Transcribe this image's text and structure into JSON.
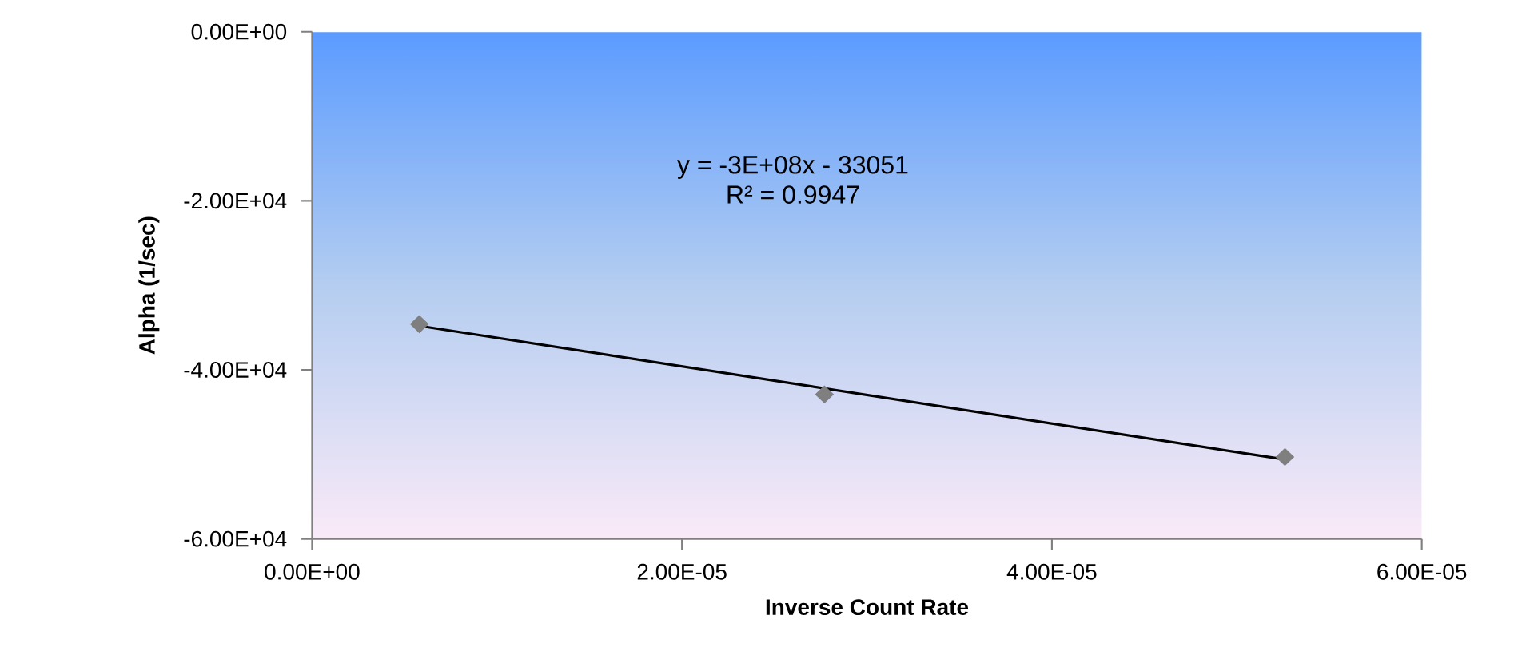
{
  "chart_data": {
    "type": "scatter",
    "xlabel": "Inverse Count Rate",
    "ylabel": "Alpha (1/sec)",
    "series": [
      {
        "color": "#7f7f7f",
        "marker": "diamond",
        "x": [
          5.8e-06,
          2.77e-05,
          5.26e-05
        ],
        "values": [
          -34600,
          -42900,
          -50300
        ]
      },
      {
        "type": "line",
        "color": "#000000",
        "x": [
          5.8e-06,
          5.26e-05
        ],
        "values": [
          -34800,
          -50600
        ]
      }
    ],
    "annotations": [
      {
        "text": "y = -3E+08x - 33051"
      },
      {
        "text": "R² = 0.9947"
      }
    ],
    "xlim": [
      0,
      6e-05
    ],
    "ylim": [
      -60000,
      0
    ],
    "xticks": [
      {
        "value": 0,
        "label": "0.00E+00"
      },
      {
        "value": 2e-05,
        "label": "2.00E-05"
      },
      {
        "value": 4e-05,
        "label": "4.00E-05"
      },
      {
        "value": 6e-05,
        "label": "6.00E-05"
      }
    ],
    "yticks": [
      {
        "value": -60000,
        "label": "-6.00E+04"
      },
      {
        "value": -40000,
        "label": "-4.00E+04"
      },
      {
        "value": -20000,
        "label": "-2.00E+04"
      },
      {
        "value": 0,
        "label": "0.00E+00"
      }
    ],
    "grid": false
  }
}
